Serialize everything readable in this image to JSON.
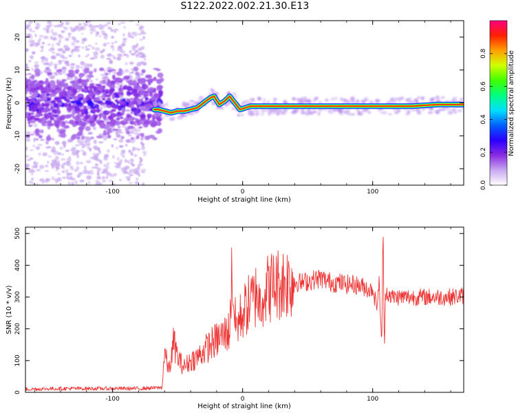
{
  "title": "S122.2022.002.21.30.E13",
  "chart_data": [
    {
      "type": "heatmap",
      "xlabel": "Height of straight line (km)",
      "ylabel": "Frequency (Hz)",
      "xlim": [
        -167,
        170
      ],
      "ylim": [
        -25,
        25
      ],
      "xticks": [
        -100,
        0,
        100
      ],
      "yticks": [
        -20,
        -10,
        0,
        10,
        20
      ],
      "colorbar": {
        "label": "Normalized spectral amplitude",
        "range": [
          0.0,
          1.0
        ],
        "ticks": [
          "0.0",
          "0.2",
          "0.4",
          "0.6",
          "0.8"
        ],
        "colormap": [
          "#ffffff",
          "#c8a8f0",
          "#8a2be2",
          "#2a00ff",
          "#0060ff",
          "#00e0ff",
          "#00ff80",
          "#40ff00",
          "#d0ff00",
          "#ffa000",
          "#ff2000",
          "#ff0080"
        ]
      },
      "ridge": {
        "x": [
          -65,
          -60,
          -55,
          -50,
          -45,
          -40,
          -35,
          -30,
          -25,
          -22,
          -18,
          -14,
          -10,
          -6,
          -2,
          2,
          6,
          10,
          20,
          40,
          60,
          80,
          90,
          100,
          110,
          130,
          150,
          170
        ],
        "freq_hz": [
          -2,
          -2.5,
          -3,
          -2.5,
          -2.5,
          -2,
          -1.5,
          0,
          1.5,
          2,
          -0.5,
          0.5,
          2,
          0,
          -2,
          -1.5,
          -1,
          -1,
          -1,
          -1,
          -1,
          -1,
          -1,
          -1,
          -1,
          -1,
          -0.5,
          -0.5
        ]
      }
    },
    {
      "type": "line",
      "xlabel": "Height of straight line (km)",
      "ylabel": "SNR (10 * v/v)",
      "xlim": [
        -167,
        170
      ],
      "ylim": [
        0,
        520
      ],
      "xticks": [
        -100,
        0,
        100
      ],
      "yticks": [
        0,
        100,
        200,
        300,
        400,
        500
      ],
      "line_color": "#ee3333",
      "series": [
        {
          "x": [
            -167,
            -140,
            -110,
            -80,
            -62,
            -60,
            -57,
            -55,
            -53,
            -50,
            -47,
            -45,
            -40,
            -35,
            -30,
            -25,
            -20,
            -15,
            -10,
            -8,
            -7,
            -6,
            -5,
            -3,
            0,
            5,
            10,
            11,
            12,
            15,
            20,
            25,
            30,
            35,
            40,
            45,
            50,
            55,
            60,
            65,
            70,
            75,
            80,
            85,
            90,
            95,
            98,
            100,
            103,
            105,
            107,
            108,
            109,
            110,
            115,
            120,
            130,
            140,
            150,
            160,
            170
          ],
          "y": [
            10,
            12,
            12,
            12,
            15,
            130,
            70,
            100,
            160,
            110,
            90,
            80,
            100,
            110,
            130,
            150,
            165,
            180,
            195,
            400,
            280,
            230,
            210,
            225,
            250,
            280,
            300,
            370,
            270,
            310,
            330,
            340,
            345,
            350,
            348,
            345,
            350,
            355,
            360,
            350,
            345,
            345,
            340,
            340,
            335,
            330,
            320,
            330,
            270,
            340,
            150,
            520,
            125,
            320,
            300,
            300,
            300,
            300,
            300,
            300,
            305
          ]
        }
      ]
    }
  ]
}
